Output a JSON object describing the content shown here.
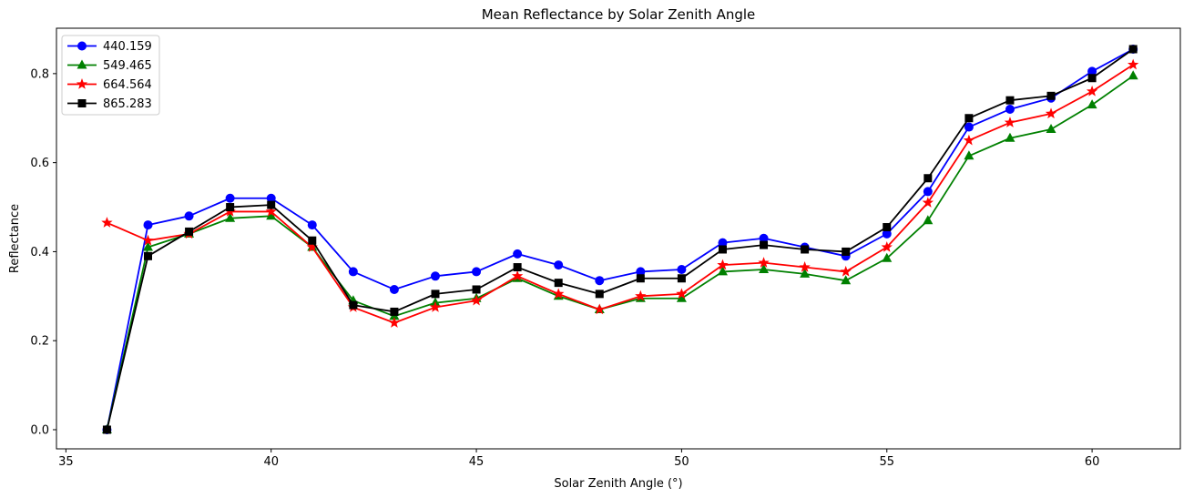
{
  "chart_data": {
    "type": "line",
    "title": "Mean Reflectance by Solar Zenith Angle",
    "xlabel": "Solar Zenith Angle (°)",
    "ylabel": "Reflectance",
    "x": [
      36,
      37,
      38,
      39,
      40,
      41,
      42,
      43,
      44,
      45,
      46,
      47,
      48,
      49,
      50,
      51,
      52,
      53,
      54,
      55,
      56,
      57,
      58,
      59,
      60,
      61
    ],
    "series": [
      {
        "name": "440.159",
        "color": "#0000ff",
        "marker": "circle",
        "values": [
          0.0,
          0.46,
          0.48,
          0.52,
          0.52,
          0.46,
          0.355,
          0.315,
          0.345,
          0.355,
          0.395,
          0.37,
          0.335,
          0.355,
          0.36,
          0.42,
          0.43,
          0.41,
          0.39,
          0.44,
          0.535,
          0.68,
          0.72,
          0.745,
          0.805,
          0.855
        ]
      },
      {
        "name": "549.465",
        "color": "#008000",
        "marker": "triangle",
        "values": [
          0.0,
          0.41,
          0.44,
          0.475,
          0.48,
          0.41,
          0.29,
          0.255,
          0.285,
          0.295,
          0.34,
          0.3,
          0.27,
          0.295,
          0.295,
          0.355,
          0.36,
          0.35,
          0.335,
          0.385,
          0.47,
          0.615,
          0.655,
          0.675,
          0.73,
          0.795
        ]
      },
      {
        "name": "664.564",
        "color": "#ff0000",
        "marker": "star",
        "values": [
          0.465,
          0.425,
          0.44,
          0.49,
          0.49,
          0.41,
          0.275,
          0.24,
          0.275,
          0.29,
          0.345,
          0.305,
          0.27,
          0.3,
          0.305,
          0.37,
          0.375,
          0.365,
          0.355,
          0.41,
          0.51,
          0.65,
          0.69,
          0.71,
          0.76,
          0.82
        ]
      },
      {
        "name": "865.283",
        "color": "#000000",
        "marker": "square",
        "values": [
          0.0,
          0.39,
          0.445,
          0.5,
          0.505,
          0.425,
          0.28,
          0.265,
          0.305,
          0.315,
          0.365,
          0.33,
          0.305,
          0.34,
          0.34,
          0.405,
          0.415,
          0.405,
          0.4,
          0.455,
          0.565,
          0.7,
          0.74,
          0.75,
          0.79,
          0.855
        ]
      }
    ],
    "xlim": [
      34.77,
      62.15
    ],
    "ylim": [
      -0.043,
      0.902
    ],
    "xtick_values": [
      35,
      40,
      45,
      50,
      55,
      60
    ],
    "xtick_labels": [
      "35",
      "40",
      "45",
      "50",
      "55",
      "60"
    ],
    "ytick_values": [
      0.0,
      0.2,
      0.4,
      0.6,
      0.8
    ],
    "ytick_labels": [
      "0.0",
      "0.2",
      "0.4",
      "0.6",
      "0.8"
    ],
    "grid": false,
    "legend_position": "upper-left"
  }
}
